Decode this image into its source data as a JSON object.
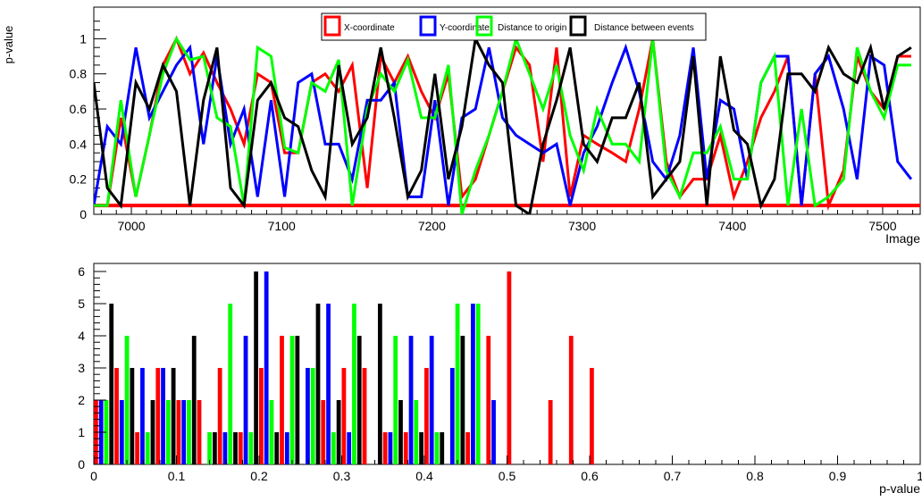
{
  "chart_data": [
    {
      "type": "line",
      "ylabel": "p-value",
      "xlabel": "Image",
      "xlim": [
        6975,
        7525
      ],
      "ylim": [
        0,
        1.18
      ],
      "x_ticks": [
        "7000",
        "7100",
        "7200",
        "7300",
        "7400",
        "7500"
      ],
      "y_ticks": [
        "0",
        "0.2",
        "0.4",
        "0.6",
        "0.8",
        "1"
      ],
      "legend_position": "top-center",
      "threshold": {
        "value": 0.05,
        "color": "#ff0000"
      },
      "x": [
        6975,
        6984,
        6993,
        7003,
        7012,
        7021,
        7030,
        7039,
        7048,
        7057,
        7066,
        7075,
        7084,
        7093,
        7102,
        7111,
        7120,
        7129,
        7138,
        7147,
        7157,
        7166,
        7175,
        7184,
        7193,
        7202,
        7211,
        7220,
        7229,
        7238,
        7247,
        7256,
        7265,
        7274,
        7283,
        7292,
        7301,
        7310,
        7320,
        7329,
        7338,
        7347,
        7356,
        7365,
        7374,
        7383,
        7392,
        7401,
        7410,
        7419,
        7428,
        7437,
        7446,
        7455,
        7464,
        7474,
        7483,
        7492,
        7501,
        7510,
        7519
      ],
      "series": [
        {
          "name": "X-coordinate",
          "color": "#ff0000",
          "values": [
            0.05,
            0.05,
            0.55,
            0.1,
            0.45,
            0.85,
            1.0,
            0.8,
            0.92,
            0.75,
            0.6,
            0.4,
            0.8,
            0.75,
            0.35,
            0.35,
            0.75,
            0.8,
            0.7,
            0.85,
            0.15,
            0.9,
            0.75,
            0.9,
            0.7,
            0.55,
            0.8,
            0.1,
            0.2,
            0.45,
            0.7,
            0.95,
            0.85,
            0.3,
            0.95,
            0.1,
            0.45,
            0.4,
            0.35,
            0.3,
            0.6,
            1.0,
            0.3,
            0.1,
            0.2,
            0.2,
            0.45,
            0.1,
            0.3,
            0.55,
            0.7,
            0.9,
            0.05,
            0.8,
            0.05,
            0.25,
            0.9,
            0.7,
            0.6,
            0.9,
            0.9
          ]
        },
        {
          "name": "Y-coordinate",
          "color": "#0000ff",
          "values": [
            0.05,
            0.5,
            0.4,
            0.95,
            0.55,
            0.7,
            0.85,
            0.95,
            0.4,
            0.9,
            0.4,
            0.6,
            0.1,
            0.65,
            0.1,
            0.75,
            0.8,
            0.4,
            0.4,
            0.2,
            0.65,
            0.65,
            0.75,
            0.1,
            0.1,
            0.65,
            0.05,
            0.55,
            0.6,
            0.95,
            0.55,
            0.45,
            0.4,
            0.35,
            0.4,
            0.05,
            0.35,
            0.5,
            0.75,
            0.95,
            0.7,
            0.3,
            0.2,
            0.45,
            0.95,
            0.2,
            0.65,
            0.6,
            0.2,
            0.75,
            0.9,
            0.9,
            0.05,
            0.8,
            0.9,
            0.6,
            0.2,
            0.9,
            0.85,
            0.3,
            0.2
          ]
        },
        {
          "name": "Distance to origin",
          "color": "#00ff00",
          "values": [
            0.05,
            0.05,
            0.65,
            0.1,
            0.45,
            0.8,
            1.0,
            0.88,
            0.9,
            0.55,
            0.5,
            0.05,
            0.95,
            0.9,
            0.38,
            0.35,
            0.75,
            0.7,
            0.88,
            0.05,
            0.6,
            0.8,
            0.7,
            0.88,
            0.55,
            0.55,
            0.85,
            0.0,
            0.25,
            0.45,
            0.7,
            1.0,
            0.8,
            0.6,
            0.85,
            0.45,
            0.25,
            0.6,
            0.4,
            0.4,
            0.3,
            1.0,
            0.25,
            0.1,
            0.35,
            0.35,
            0.5,
            0.2,
            0.2,
            0.75,
            0.9,
            0.05,
            0.6,
            0.05,
            0.1,
            0.2,
            0.95,
            0.7,
            0.55,
            0.85,
            0.85
          ]
        },
        {
          "name": "Distance between events",
          "color": "#000000",
          "values": [
            0.75,
            0.15,
            0.05,
            0.75,
            0.6,
            0.85,
            0.7,
            0.05,
            0.65,
            0.95,
            0.15,
            0.05,
            0.65,
            0.75,
            0.55,
            0.5,
            0.25,
            0.1,
            0.85,
            0.4,
            0.55,
            0.95,
            0.55,
            0.1,
            0.25,
            0.8,
            0.2,
            0.5,
            1.0,
            0.85,
            0.75,
            0.05,
            0.0,
            0.4,
            0.65,
            0.95,
            0.4,
            0.3,
            0.55,
            0.55,
            0.75,
            0.1,
            0.2,
            0.3,
            0.9,
            0.05,
            0.9,
            0.48,
            0.4,
            0.05,
            0.2,
            0.8,
            0.8,
            0.7,
            0.95,
            0.8,
            0.75,
            0.95,
            0.6,
            0.9,
            0.95
          ]
        }
      ]
    },
    {
      "type": "bar",
      "xlabel": "p-value",
      "ylabel": "",
      "xlim": [
        0,
        1
      ],
      "ylim": [
        0,
        6.25
      ],
      "x_ticks": [
        "0",
        "0.1",
        "0.2",
        "0.3",
        "0.4",
        "0.5",
        "0.6",
        "0.7",
        "0.8",
        "0.9",
        "1"
      ],
      "y_ticks": [
        "0",
        "1",
        "2",
        "3",
        "4",
        "5",
        "6"
      ],
      "bin_width": 0.025,
      "series": [
        {
          "name": "X-coordinate",
          "color": "#ff0000",
          "values": [
            2,
            3,
            1,
            3,
            2,
            2,
            3,
            1,
            3,
            4,
            0,
            2,
            3,
            3,
            1,
            1,
            3,
            0,
            1,
            4,
            6,
            0,
            2,
            4,
            3,
            0,
            0,
            0,
            0,
            0,
            0,
            0,
            0,
            0,
            0,
            0,
            0,
            0,
            0,
            0
          ]
        },
        {
          "name": "Y-coordinate",
          "color": "#0000ff",
          "values": [
            2,
            2,
            3,
            3,
            2,
            0,
            1,
            4,
            6,
            1,
            3,
            5,
            1,
            0,
            1,
            4,
            4,
            3,
            5,
            2,
            0,
            0,
            0,
            0,
            0,
            0,
            0,
            0,
            0,
            0,
            0,
            0,
            0,
            0,
            0,
            0,
            0,
            0,
            0,
            0
          ]
        },
        {
          "name": "Distance to origin",
          "color": "#00ff00",
          "values": [
            2,
            4,
            1,
            2,
            2,
            1,
            5,
            1,
            2,
            4,
            3,
            1,
            5,
            0,
            4,
            2,
            1,
            5,
            5,
            0,
            0,
            0,
            0,
            0,
            0,
            0,
            0,
            0,
            0,
            0,
            0,
            0,
            0,
            0,
            0,
            0,
            0,
            0,
            0,
            0
          ]
        },
        {
          "name": "Distance between events",
          "color": "#000000",
          "values": [
            5,
            3,
            2,
            3,
            4,
            1,
            1,
            6,
            1,
            4,
            5,
            2,
            4,
            5,
            2,
            1,
            1,
            4,
            0,
            0,
            0,
            0,
            0,
            0,
            0,
            0,
            0,
            0,
            0,
            0,
            0,
            0,
            0,
            0,
            0,
            0,
            0,
            0,
            0,
            0
          ]
        }
      ]
    }
  ]
}
